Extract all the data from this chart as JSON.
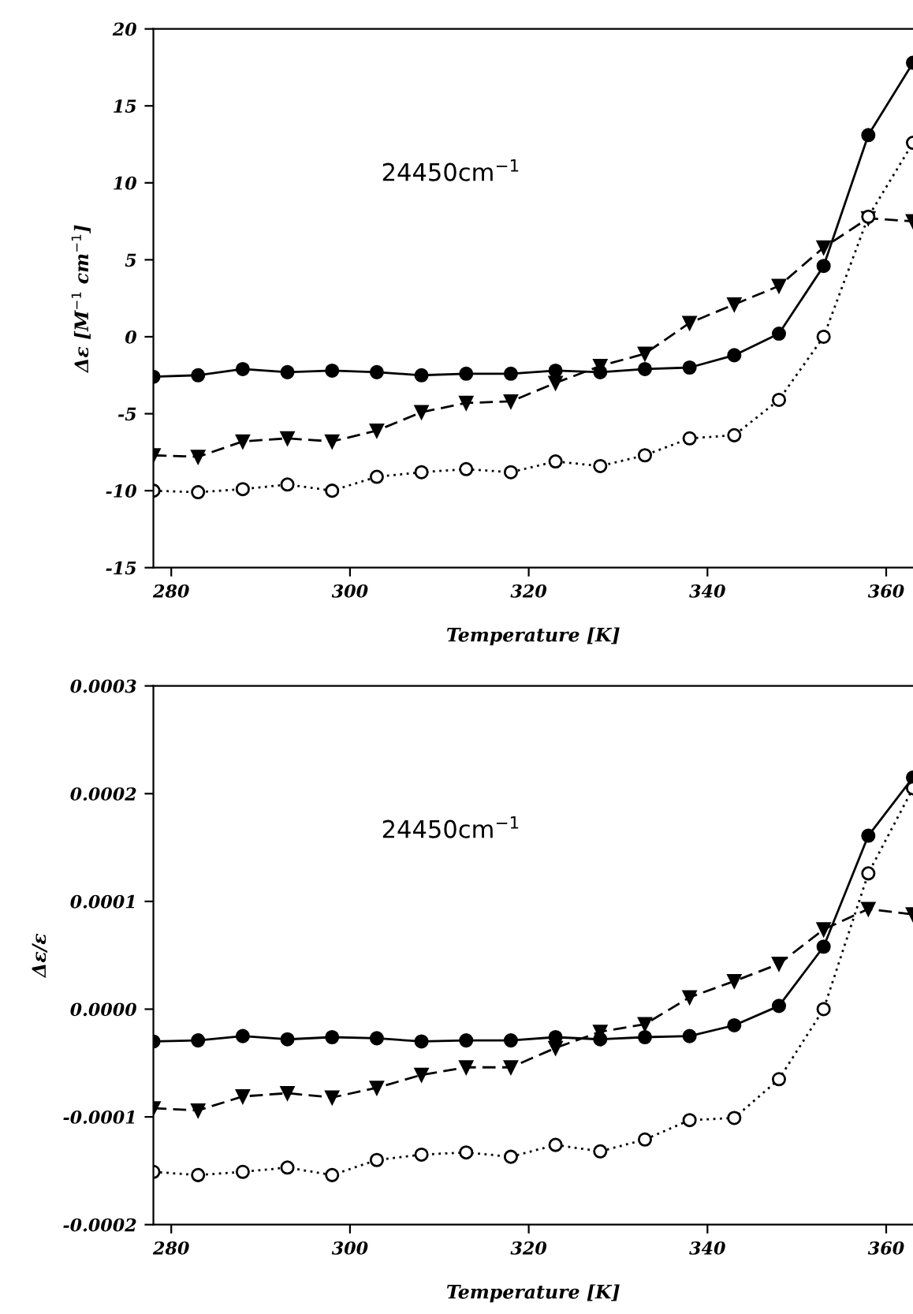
{
  "chart_data": [
    {
      "type": "line",
      "xlabel": "Temperature [K]",
      "ylabel": "Δε [M$^{−1}$ cm$^{−1}$]",
      "annotations": [
        "24450cm$^{−1}$"
      ],
      "x": [
        278,
        283,
        288,
        293,
        298,
        303,
        308,
        313,
        318,
        323,
        328,
        333,
        338,
        343,
        348,
        353,
        358,
        363
      ],
      "xlim": [
        278,
        363
      ],
      "xticks": [
        280,
        300,
        320,
        340,
        360
      ],
      "ylim": [
        -15,
        20
      ],
      "yticks": [
        -15,
        -10,
        -5,
        0,
        5,
        10,
        15,
        20
      ],
      "grid": false,
      "legend": false,
      "series": [
        {
          "color": "#000000",
          "marker": "circle",
          "line_style": "solid",
          "values": [
            -2.6,
            -2.5,
            -2.1,
            -2.3,
            -2.2,
            -2.3,
            -2.5,
            -2.4,
            -2.4,
            -2.2,
            -2.3,
            -2.1,
            -2.0,
            -1.2,
            0.2,
            4.6,
            13.1,
            17.8
          ]
        },
        {
          "color": "#000000",
          "marker": "triangle",
          "line_style": "dashed",
          "values": [
            -7.7,
            -7.8,
            -6.8,
            -6.6,
            -6.8,
            -6.1,
            -4.9,
            -4.3,
            -4.2,
            -3.0,
            -1.9,
            -1.1,
            0.9,
            2.1,
            3.3,
            5.8,
            7.7,
            7.5
          ]
        },
        {
          "color": "#ffffff",
          "marker": "circle",
          "line_style": "dotted",
          "values": [
            -10.0,
            -10.1,
            -9.9,
            -9.6,
            -10.0,
            -9.1,
            -8.8,
            -8.6,
            -8.8,
            -8.1,
            -8.4,
            -7.7,
            -6.6,
            -6.4,
            -4.1,
            0.0,
            7.8,
            12.6
          ]
        }
      ]
    },
    {
      "type": "line",
      "xlabel": "Temperature [K]",
      "ylabel": "Δε/ε",
      "annotations": [
        "24450cm$^{−1}$"
      ],
      "x": [
        278,
        283,
        288,
        293,
        298,
        303,
        308,
        313,
        318,
        323,
        328,
        333,
        338,
        343,
        348,
        353,
        358,
        363
      ],
      "xlim": [
        278,
        363
      ],
      "xticks": [
        280,
        300,
        320,
        340,
        360
      ],
      "ylim": [
        -0.0002,
        0.0003
      ],
      "yticks": [
        {
          "value": -0.0002,
          "label": "-0.0002"
        },
        {
          "value": -0.0001,
          "label": "-0.0001"
        },
        {
          "value": 0,
          "label": "0.0000"
        },
        {
          "value": 0.0001,
          "label": "0.0001"
        },
        {
          "value": 0.0002,
          "label": "0.0002"
        },
        {
          "value": 0.0003,
          "label": "0.0003"
        }
      ],
      "grid": false,
      "legend": false,
      "series": [
        {
          "color": "#000000",
          "marker": "circle",
          "line_style": "solid",
          "values": [
            -3e-05,
            -2.9e-05,
            -2.5e-05,
            -2.8e-05,
            -2.6e-05,
            -2.7e-05,
            -3e-05,
            -2.9e-05,
            -2.9e-05,
            -2.6e-05,
            -2.8e-05,
            -2.6e-05,
            -2.5e-05,
            -1.5e-05,
            3e-06,
            5.8e-05,
            0.000161,
            0.000215
          ]
        },
        {
          "color": "#000000",
          "marker": "triangle",
          "line_style": "dashed",
          "values": [
            -9.2e-05,
            -9.4e-05,
            -8.1e-05,
            -7.8e-05,
            -8.2e-05,
            -7.3e-05,
            -6.1e-05,
            -5.4e-05,
            -5.4e-05,
            -3.6e-05,
            -2.1e-05,
            -1.4e-05,
            1.1e-05,
            2.6e-05,
            4.2e-05,
            7.4e-05,
            9.3e-05,
            8.8e-05
          ]
        },
        {
          "color": "#ffffff",
          "marker": "circle",
          "line_style": "dotted",
          "values": [
            -0.000151,
            -0.000154,
            -0.000151,
            -0.000147,
            -0.000154,
            -0.00014,
            -0.000135,
            -0.000133,
            -0.000137,
            -0.000126,
            -0.000132,
            -0.000121,
            -0.000103,
            -0.000101,
            -6.5e-05,
            0.0,
            0.000126,
            0.000205
          ]
        }
      ]
    }
  ]
}
